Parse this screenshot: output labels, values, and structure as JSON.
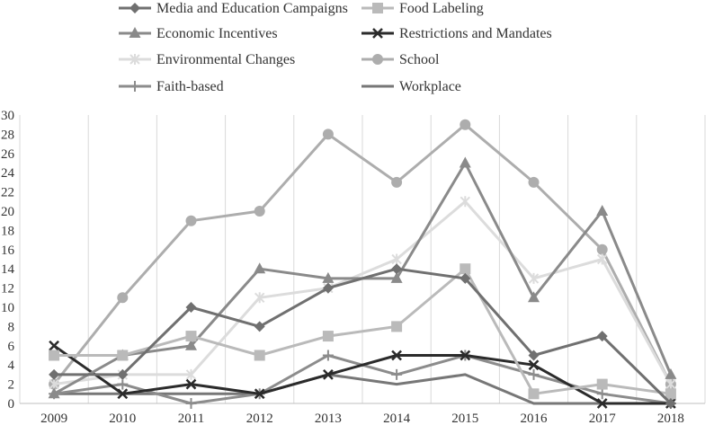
{
  "chart_data": {
    "type": "line",
    "title": "",
    "xlabel": "",
    "ylabel": "",
    "x": [
      "2009",
      "2010",
      "2011",
      "2012",
      "2013",
      "2014",
      "2015",
      "2016",
      "2017",
      "2018"
    ],
    "ylim": [
      0,
      30
    ],
    "yticks": [
      "0",
      "2",
      "4",
      "6",
      "8",
      "10",
      "12",
      "14",
      "16",
      "18",
      "20",
      "22",
      "24",
      "26",
      "28",
      "30"
    ],
    "grid": "vertical",
    "legend_position": "top",
    "series": [
      {
        "name": "Media and Education Campaigns",
        "values": [
          3,
          3,
          10,
          8,
          12,
          14,
          13,
          5,
          7,
          0
        ],
        "color": "#707070",
        "marker": "diamond"
      },
      {
        "name": "Food Labeling",
        "values": [
          5,
          5,
          7,
          5,
          7,
          8,
          14,
          1,
          2,
          1
        ],
        "color": "#bababa",
        "marker": "square"
      },
      {
        "name": "Economic Incentives",
        "values": [
          1,
          5,
          6,
          14,
          13,
          13,
          25,
          11,
          20,
          3
        ],
        "color": "#8a8a8a",
        "marker": "triangle"
      },
      {
        "name": "Restrictions and Mandates",
        "values": [
          6,
          1,
          2,
          1,
          3,
          5,
          5,
          4,
          0,
          0
        ],
        "color": "#2b2b2b",
        "marker": "x"
      },
      {
        "name": "Environmental Changes",
        "values": [
          2,
          3,
          3,
          11,
          12,
          15,
          21,
          13,
          15,
          2
        ],
        "color": "#dcdcdc",
        "marker": "star"
      },
      {
        "name": "School",
        "values": [
          2,
          11,
          19,
          20,
          28,
          23,
          29,
          23,
          16,
          2
        ],
        "color": "#adadad",
        "marker": "circle"
      },
      {
        "name": "Faith-based",
        "values": [
          1,
          2,
          0,
          1,
          5,
          3,
          5,
          3,
          1,
          0
        ],
        "color": "#8c8c8c",
        "marker": "plus"
      },
      {
        "name": "Workplace",
        "values": [
          1,
          1,
          1,
          1,
          3,
          2,
          3,
          0,
          0,
          0
        ],
        "color": "#777777",
        "marker": "none"
      }
    ]
  }
}
